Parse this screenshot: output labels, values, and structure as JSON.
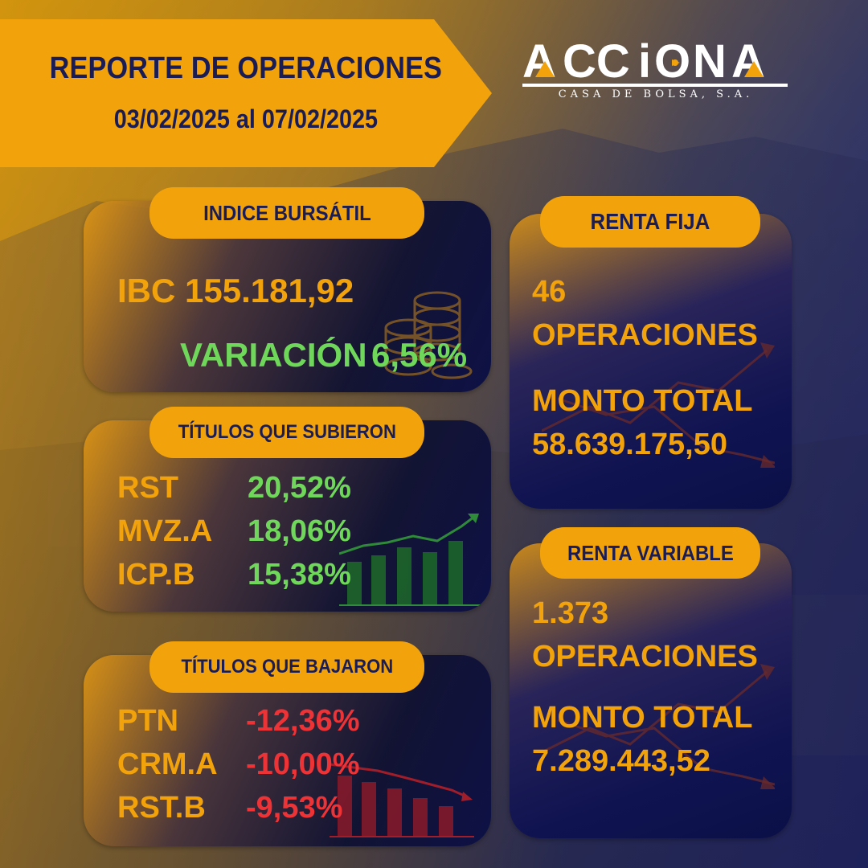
{
  "header": {
    "title": "REPORTE DE OPERACIONES",
    "date_range": "03/02/2025 al 07/02/2025"
  },
  "logo": {
    "wordmark": "ACCIONA",
    "subtitle": "CASA DE BOLSA, S.A."
  },
  "indice": {
    "label": "INDICE BURSÁTIL",
    "ibc": "IBC 155.181,92",
    "variation_label": "VARIACIÓN",
    "variation_value": "6,56%"
  },
  "subieron": {
    "label": "TÍTULOS QUE SUBIERON",
    "items": [
      {
        "ticker": "RST",
        "change": "20,52%"
      },
      {
        "ticker": "MVZ.A",
        "change": "18,06%"
      },
      {
        "ticker": "ICP.B",
        "change": "15,38%"
      }
    ]
  },
  "bajaron": {
    "label": "TÍTULOS QUE BAJARON",
    "items": [
      {
        "ticker": "PTN",
        "change": "-12,36%"
      },
      {
        "ticker": "CRM.A",
        "change": "-10,00%"
      },
      {
        "ticker": "RST.B",
        "change": "-9,53%"
      }
    ]
  },
  "renta_fija": {
    "label": "RENTA FIJA",
    "operations_count": "46",
    "operations_label": "OPERACIONES",
    "amount_label": "MONTO TOTAL",
    "amount_value": "58.639.175,50"
  },
  "renta_variable": {
    "label": "RENTA VARIABLE",
    "operations_count": "1.373",
    "operations_label": "OPERACIONES",
    "amount_label": "MONTO TOTAL",
    "amount_value": "7.289.443,52"
  },
  "colors": {
    "accent": "#f2a30c",
    "navy": "#1a1d55",
    "positive": "#6fd75a",
    "negative": "#ee3336"
  },
  "icons": [
    "coins-icon",
    "bar-chart-up-icon",
    "bar-chart-down-icon",
    "trend-arrow-icon"
  ]
}
